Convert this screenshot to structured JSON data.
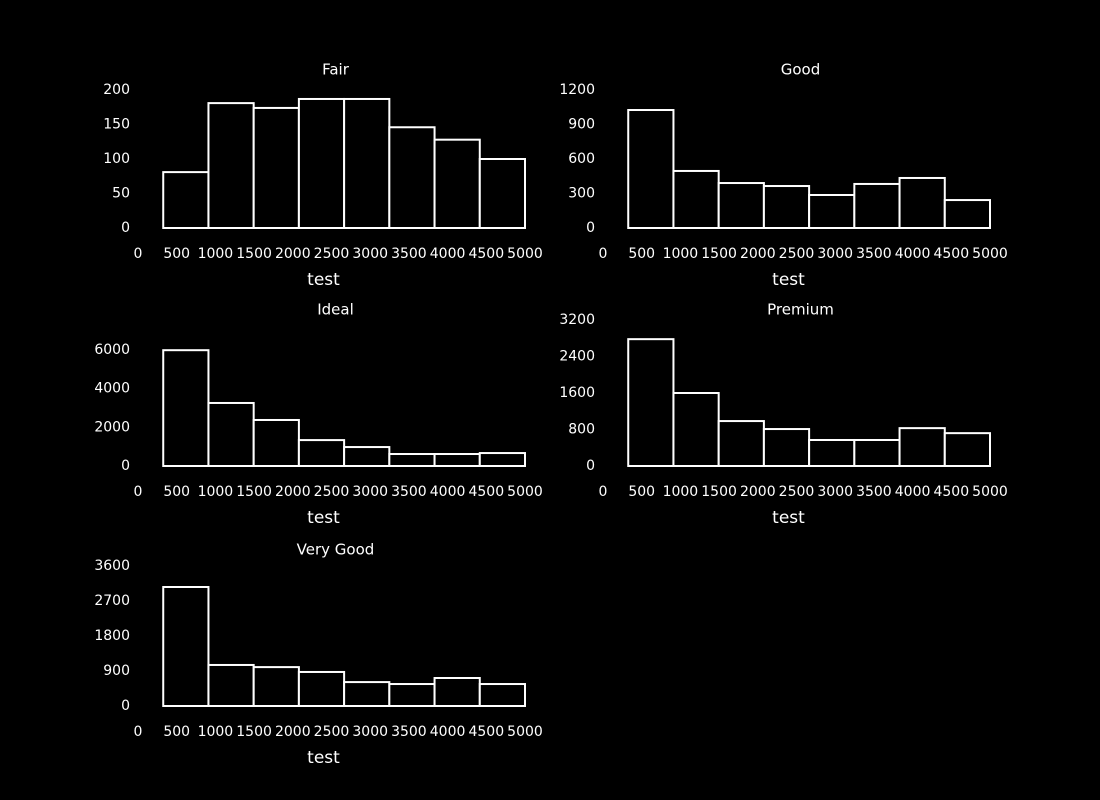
{
  "chart_data": [
    {
      "type": "histogram",
      "title": "Fair",
      "xlabel": "test",
      "bins": [
        326,
        910.25,
        1494.5,
        2078.75,
        2663,
        3247.25,
        3831.5,
        4415.75,
        5000
      ],
      "values": [
        81,
        181,
        174,
        187,
        187,
        146,
        128,
        100
      ],
      "xlim": [
        0,
        5000
      ],
      "xticks": [
        0,
        500,
        1000,
        1500,
        2000,
        2500,
        3000,
        3500,
        4000,
        4500,
        5000
      ],
      "ylim": [
        0,
        200
      ],
      "yticks": [
        0,
        50,
        100,
        150,
        200
      ],
      "color": "#000000",
      "edgecolor": "#ffffff"
    },
    {
      "type": "histogram",
      "title": "Good",
      "xlabel": "test",
      "bins": [
        326,
        910.25,
        1494.5,
        2078.75,
        2663,
        3247.25,
        3831.5,
        4415.75,
        5000
      ],
      "values": [
        1026,
        496,
        391,
        365,
        287,
        383,
        435,
        243
      ],
      "xlim": [
        0,
        5000
      ],
      "xticks": [
        0,
        500,
        1000,
        1500,
        2000,
        2500,
        3000,
        3500,
        4000,
        4500,
        5000
      ],
      "ylim": [
        0,
        1200
      ],
      "yticks": [
        0,
        300,
        600,
        900,
        1200
      ],
      "color": "#000000",
      "edgecolor": "#ffffff"
    },
    {
      "type": "histogram",
      "title": "Ideal",
      "xlabel": "test",
      "bins": [
        326,
        910.25,
        1494.5,
        2078.75,
        2663,
        3247.25,
        3831.5,
        4415.75,
        5000
      ],
      "values": [
        5990,
        3260,
        2380,
        1340,
        980,
        620,
        620,
        670
      ],
      "xlim": [
        0,
        5000
      ],
      "xticks": [
        0,
        500,
        1000,
        1500,
        2000,
        2500,
        3000,
        3500,
        4000,
        4500,
        5000
      ],
      "ylim": [
        0,
        6000
      ],
      "yticks": [
        0,
        2000,
        4000,
        6000
      ],
      "color": "#000000",
      "edgecolor": "#ffffff"
    },
    {
      "type": "histogram",
      "title": "Premium",
      "xlabel": "test",
      "bins": [
        326,
        910.25,
        1494.5,
        2078.75,
        2663,
        3247.25,
        3831.5,
        4415.75,
        5000
      ],
      "values": [
        2780,
        1600,
        985,
        810,
        570,
        570,
        830,
        720
      ],
      "xlim": [
        0,
        5000
      ],
      "xticks": [
        0,
        500,
        1000,
        1500,
        2000,
        2500,
        3000,
        3500,
        4000,
        4500,
        5000
      ],
      "ylim": [
        0,
        3200
      ],
      "yticks": [
        0,
        800,
        1600,
        2400,
        3200
      ],
      "color": "#000000",
      "edgecolor": "#ffffff"
    },
    {
      "type": "histogram",
      "title": "Very Good",
      "xlabel": "test",
      "bins": [
        326,
        910.25,
        1494.5,
        2078.75,
        2663,
        3247.25,
        3831.5,
        4415.75,
        5000
      ],
      "values": [
        3060,
        1055,
        1000,
        875,
        615,
        565,
        720,
        565
      ],
      "xlim": [
        0,
        5000
      ],
      "xticks": [
        0,
        500,
        1000,
        1500,
        2000,
        2500,
        3000,
        3500,
        4000,
        4500,
        5000
      ],
      "ylim": [
        0,
        3600
      ],
      "yticks": [
        0,
        900,
        1800,
        2700,
        3600
      ],
      "color": "#000000",
      "edgecolor": "#ffffff"
    }
  ]
}
